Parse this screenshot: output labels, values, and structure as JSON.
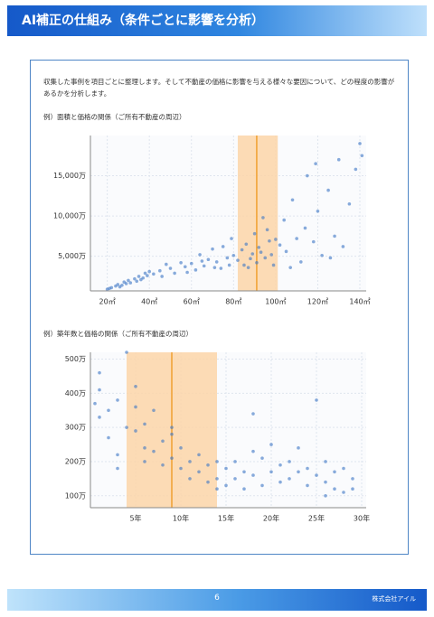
{
  "header": {
    "title": "AI補正の仕組み（条件ごとに影響を分析）"
  },
  "intro": "収集した事例を項目ごとに整理します。そして不動産の価格に影響を与える様々な要因について、どの程度の影響があるかを分析します。",
  "chart_data": [
    {
      "type": "scatter",
      "title": "例）面積と価格の関係（ご所有不動産の周辺）",
      "color": "#3a75c4",
      "grid": true,
      "highlight": [
        82,
        101
      ],
      "highlight_color": "#fcd5a8",
      "marker": 91,
      "marker_color": "#f0a030",
      "x": [
        20,
        22,
        24,
        25,
        27,
        28,
        30,
        31,
        33,
        35,
        36,
        38,
        39,
        40,
        21,
        26,
        29,
        34,
        37,
        42,
        45,
        48,
        50,
        52,
        55,
        57,
        60,
        62,
        64,
        66,
        68,
        70,
        72,
        74,
        75,
        77,
        78,
        80,
        46,
        58,
        65,
        71,
        79,
        82,
        84,
        85,
        86,
        88,
        89,
        90,
        91,
        92,
        93,
        95,
        96,
        97,
        98,
        99,
        100,
        94,
        87,
        102,
        104,
        105,
        108,
        110,
        112,
        114,
        115,
        118,
        120,
        122,
        125,
        128,
        130,
        132,
        135,
        138,
        140,
        141,
        107,
        119,
        126
      ],
      "y": [
        900,
        1100,
        1300,
        1500,
        1400,
        1800,
        2000,
        1700,
        2200,
        2500,
        2100,
        2900,
        2600,
        3100,
        1000,
        1200,
        1600,
        1900,
        2300,
        2800,
        3200,
        4000,
        3500,
        2900,
        4200,
        3700,
        4100,
        3300,
        5200,
        3800,
        4600,
        5900,
        4300,
        3500,
        6200,
        4800,
        3900,
        5100,
        2500,
        3000,
        4400,
        3600,
        7200,
        4500,
        5800,
        3900,
        6500,
        4700,
        5300,
        7800,
        4200,
        6100,
        5500,
        4800,
        8300,
        6900,
        5200,
        3900,
        7100,
        9800,
        3600,
        6400,
        9500,
        5600,
        12000,
        7200,
        4300,
        8500,
        15000,
        6800,
        10600,
        5100,
        13200,
        7500,
        17000,
        6200,
        11500,
        15800,
        19000,
        17500,
        3600,
        16500,
        4800
      ],
      "xlim": [
        12,
        143
      ],
      "xticks": [
        {
          "value": 20,
          "label": "20㎡"
        },
        {
          "value": 40,
          "label": "40㎡"
        },
        {
          "value": 60,
          "label": "60㎡"
        },
        {
          "value": 80,
          "label": "80㎡"
        },
        {
          "value": 100,
          "label": "100㎡"
        },
        {
          "value": 120,
          "label": "120㎡"
        },
        {
          "value": 140,
          "label": "140㎡"
        }
      ],
      "ylim": [
        700,
        20000
      ],
      "yticks": [
        {
          "value": 5000,
          "label": "5,000万"
        },
        {
          "value": 10000,
          "label": "10,000万"
        },
        {
          "value": 15000,
          "label": "15,000万"
        }
      ]
    },
    {
      "type": "scatter",
      "title": "例）築年数と価格の関係（ご所有不動産の周辺）",
      "color": "#3a75c4",
      "grid": true,
      "highlight": [
        4,
        14
      ],
      "highlight_color": "#fcd5a8",
      "marker": 9,
      "marker_color": "#f0a030",
      "x": [
        1,
        1,
        1,
        2,
        2,
        3,
        3,
        4,
        4,
        5,
        5,
        5,
        6,
        6,
        6,
        7,
        7,
        8,
        8,
        9,
        9,
        9,
        10,
        10,
        11,
        11,
        12,
        12,
        13,
        13,
        14,
        14,
        14,
        15,
        15,
        16,
        16,
        17,
        17,
        18,
        18,
        19,
        19,
        20,
        20,
        21,
        21,
        22,
        22,
        23,
        23,
        24,
        24,
        25,
        25,
        26,
        26,
        27,
        27,
        28,
        28,
        29,
        29,
        0.5,
        3,
        26,
        18
      ],
      "y": [
        330,
        460,
        410,
        270,
        350,
        220,
        380,
        520,
        300,
        290,
        360,
        420,
        240,
        310,
        200,
        230,
        350,
        190,
        260,
        300,
        210,
        280,
        180,
        240,
        200,
        150,
        220,
        170,
        190,
        140,
        200,
        150,
        120,
        180,
        130,
        200,
        150,
        170,
        120,
        230,
        160,
        210,
        130,
        250,
        170,
        190,
        140,
        200,
        150,
        240,
        170,
        180,
        130,
        380,
        160,
        200,
        140,
        170,
        120,
        180,
        110,
        150,
        120,
        370,
        180,
        100,
        340
      ],
      "xlim": [
        0,
        30.5
      ],
      "xticks": [
        {
          "value": 5,
          "label": "5年"
        },
        {
          "value": 10,
          "label": "10年"
        },
        {
          "value": 15,
          "label": "15年"
        },
        {
          "value": 20,
          "label": "20年"
        },
        {
          "value": 25,
          "label": "25年"
        },
        {
          "value": 30,
          "label": "30年"
        }
      ],
      "ylim": [
        65,
        520
      ],
      "yticks": [
        {
          "value": 100,
          "label": "100万"
        },
        {
          "value": 200,
          "label": "200万"
        },
        {
          "value": 300,
          "label": "300万"
        },
        {
          "value": 400,
          "label": "400万"
        },
        {
          "value": 500,
          "label": "500万"
        }
      ]
    }
  ],
  "footer": {
    "page": "6",
    "company": "株式会社アイル"
  }
}
